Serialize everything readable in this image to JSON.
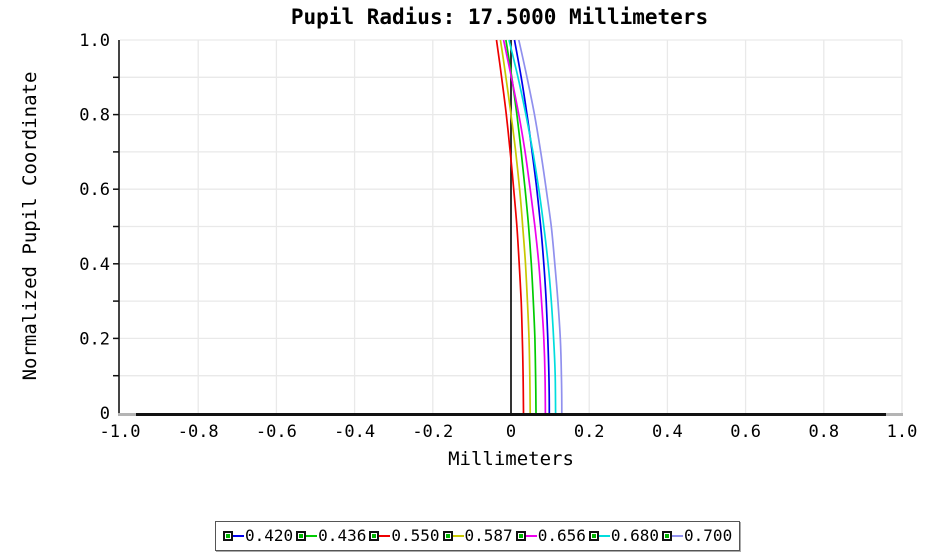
{
  "page": {
    "background": "#ffffff"
  },
  "chart_data": {
    "type": "line",
    "title": "Pupil Radius: 17.5000 Millimeters",
    "xlabel": "Millimeters",
    "ylabel": "Normalized Pupil Coordinate",
    "xlim": [
      -1.0,
      1.0
    ],
    "ylim": [
      0.0,
      1.0
    ],
    "xticks": [
      -1.0,
      -0.8,
      -0.6,
      -0.4,
      -0.2,
      0,
      0.2,
      0.4,
      0.6,
      0.8,
      1.0
    ],
    "xtick_labels": [
      "-1.0",
      "-0.8",
      "-0.6",
      "-0.4",
      "-0.2",
      "0",
      "0.2",
      "0.4",
      "0.6",
      "0.8",
      "1.0"
    ],
    "yticks": [
      0,
      0.2,
      0.4,
      0.6,
      0.8,
      1.0
    ],
    "ytick_labels": [
      "0",
      "0.2",
      "0.4",
      "0.6",
      "0.8",
      "1.0"
    ],
    "y_minor_tick_interval": 0.1,
    "grid": {
      "x_interval": 0.2,
      "y_interval": 0.1,
      "color": "#e9e9e9"
    },
    "zero_line": {
      "x": 0.0,
      "color": "#000000"
    },
    "axis_colors": {
      "left": "#444444",
      "bottom": "#111111",
      "end_caps": "#b4b4b4"
    },
    "series": [
      {
        "name": "0.420",
        "color": "#0000ee",
        "points": [
          [
            0.0,
            0.098
          ],
          [
            0.1,
            0.097
          ],
          [
            0.2,
            0.094
          ],
          [
            0.3,
            0.09
          ],
          [
            0.4,
            0.084
          ],
          [
            0.5,
            0.076
          ],
          [
            0.6,
            0.066
          ],
          [
            0.7,
            0.054
          ],
          [
            0.8,
            0.041
          ],
          [
            0.9,
            0.026
          ],
          [
            1.0,
            0.009
          ]
        ]
      },
      {
        "name": "0.436",
        "color": "#00cc00",
        "points": [
          [
            0.0,
            0.064
          ],
          [
            0.1,
            0.063
          ],
          [
            0.2,
            0.061
          ],
          [
            0.3,
            0.057
          ],
          [
            0.4,
            0.052
          ],
          [
            0.5,
            0.045
          ],
          [
            0.6,
            0.036
          ],
          [
            0.7,
            0.026
          ],
          [
            0.8,
            0.015
          ],
          [
            0.9,
            0.002
          ],
          [
            1.0,
            -0.013
          ]
        ]
      },
      {
        "name": "0.550",
        "color": "#ee0000",
        "points": [
          [
            0.0,
            0.032
          ],
          [
            0.1,
            0.031
          ],
          [
            0.2,
            0.029
          ],
          [
            0.3,
            0.026
          ],
          [
            0.4,
            0.021
          ],
          [
            0.5,
            0.015
          ],
          [
            0.6,
            0.007
          ],
          [
            0.7,
            -0.002
          ],
          [
            0.8,
            -0.012
          ],
          [
            0.9,
            -0.024
          ],
          [
            1.0,
            -0.037
          ]
        ]
      },
      {
        "name": "0.587",
        "color": "#c8c800",
        "points": [
          [
            0.0,
            0.049
          ],
          [
            0.1,
            0.048
          ],
          [
            0.2,
            0.046
          ],
          [
            0.3,
            0.042
          ],
          [
            0.4,
            0.037
          ],
          [
            0.5,
            0.03
          ],
          [
            0.6,
            0.022
          ],
          [
            0.7,
            0.012
          ],
          [
            0.8,
            0.0
          ],
          [
            0.9,
            -0.013
          ],
          [
            1.0,
            -0.027
          ]
        ]
      },
      {
        "name": "0.656",
        "color": "#ee00ee",
        "points": [
          [
            0.0,
            0.088
          ],
          [
            0.1,
            0.087
          ],
          [
            0.2,
            0.084
          ],
          [
            0.3,
            0.078
          ],
          [
            0.4,
            0.071
          ],
          [
            0.5,
            0.061
          ],
          [
            0.6,
            0.049
          ],
          [
            0.7,
            0.036
          ],
          [
            0.8,
            0.02
          ],
          [
            0.9,
            0.001
          ],
          [
            1.0,
            -0.019
          ]
        ]
      },
      {
        "name": "0.680",
        "color": "#00dddd",
        "points": [
          [
            0.0,
            0.114
          ],
          [
            0.1,
            0.113
          ],
          [
            0.2,
            0.109
          ],
          [
            0.3,
            0.103
          ],
          [
            0.4,
            0.095
          ],
          [
            0.5,
            0.084
          ],
          [
            0.6,
            0.071
          ],
          [
            0.7,
            0.056
          ],
          [
            0.8,
            0.038
          ],
          [
            0.9,
            0.018
          ],
          [
            1.0,
            -0.005
          ]
        ]
      },
      {
        "name": "0.700",
        "color": "#9090ee",
        "points": [
          [
            0.0,
            0.13
          ],
          [
            0.1,
            0.129
          ],
          [
            0.2,
            0.126
          ],
          [
            0.3,
            0.12
          ],
          [
            0.4,
            0.112
          ],
          [
            0.5,
            0.103
          ],
          [
            0.6,
            0.09
          ],
          [
            0.7,
            0.076
          ],
          [
            0.8,
            0.06
          ],
          [
            0.9,
            0.041
          ],
          [
            1.0,
            0.02
          ]
        ]
      }
    ],
    "legend": {
      "position": "bottom-center",
      "marker": "square-with-green-dot",
      "marker_dot_color": "#00b400",
      "entries": [
        "0.420",
        "0.436",
        "0.550",
        "0.587",
        "0.656",
        "0.680",
        "0.700"
      ]
    }
  }
}
